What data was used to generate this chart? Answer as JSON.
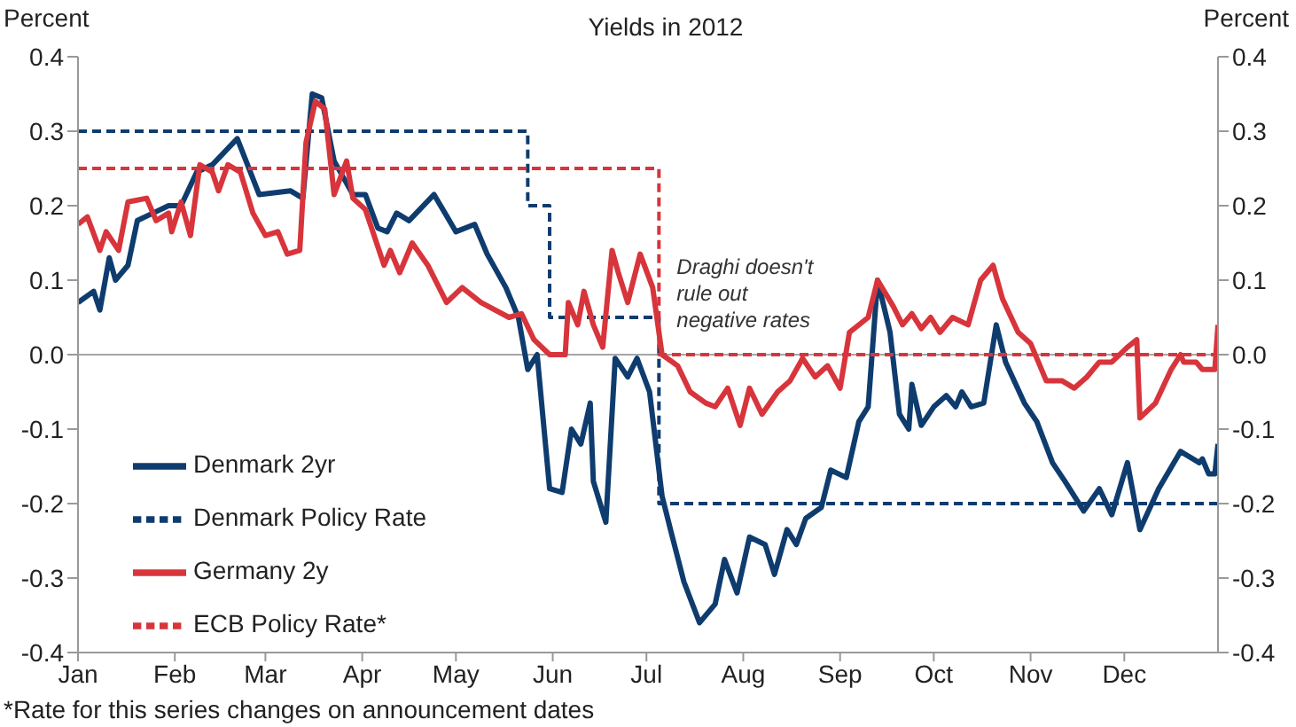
{
  "chart_data": {
    "type": "line",
    "title": "Yields in 2012",
    "ylabel": "Percent",
    "y2label": "Percent",
    "xlim": [
      "2012-01-01",
      "2012-12-31"
    ],
    "xticks": [
      {
        "value": "2012-01-01",
        "label": "Jan"
      },
      {
        "value": "2012-02-01",
        "label": "Feb"
      },
      {
        "value": "2012-03-01",
        "label": "Mar"
      },
      {
        "value": "2012-04-01",
        "label": "Apr"
      },
      {
        "value": "2012-05-01",
        "label": "May"
      },
      {
        "value": "2012-06-01",
        "label": "Jun"
      },
      {
        "value": "2012-07-01",
        "label": "Jul"
      },
      {
        "value": "2012-08-01",
        "label": "Aug"
      },
      {
        "value": "2012-09-01",
        "label": "Sep"
      },
      {
        "value": "2012-10-01",
        "label": "Oct"
      },
      {
        "value": "2012-11-01",
        "label": "Nov"
      },
      {
        "value": "2012-12-01",
        "label": "Dec"
      }
    ],
    "ylim": [
      -0.4,
      0.4
    ],
    "yticks": [
      -0.4,
      -0.3,
      -0.2,
      -0.1,
      {
        "value": 0,
        "label": "0.0"
      },
      0.1,
      0.2,
      0.3,
      0.4
    ],
    "y2lim": [
      -0.4,
      0.4
    ],
    "y2ticks": [
      -0.4,
      -0.3,
      -0.2,
      -0.1,
      {
        "value": 0,
        "label": "0.0"
      },
      0.1,
      0.2,
      0.3,
      0.4
    ],
    "marker": "none",
    "legend": "bottom left",
    "ref_lines": [
      {
        "axis": "y",
        "value": 0,
        "color": "#a6a6a6"
      }
    ],
    "annotations": [
      {
        "text": "Draghi doesn't rule out negative rates",
        "x": "2012-07-05",
        "y": 0.08
      },
      "*Rate for this series changes on announcement dates"
    ],
    "series": [
      {
        "name": "Denmark 2yr",
        "color": "#0f3c6e",
        "line_style": "solid",
        "x": [
          "2012-01-01",
          "2012-01-06",
          "2012-01-08",
          "2012-01-11",
          "2012-01-13",
          "2012-01-17",
          "2012-01-20",
          "2012-01-25",
          "2012-01-30",
          "2012-02-03",
          "2012-02-08",
          "2012-02-13",
          "2012-02-21",
          "2012-02-28",
          "2012-03-09",
          "2012-03-13",
          "2012-03-16",
          "2012-03-19",
          "2012-03-23",
          "2012-03-29",
          "2012-04-02",
          "2012-04-06",
          "2012-04-09",
          "2012-04-12",
          "2012-04-16",
          "2012-04-24",
          "2012-05-01",
          "2012-05-07",
          "2012-05-11",
          "2012-05-17",
          "2012-05-21",
          "2012-05-24",
          "2012-05-27",
          "2012-05-31",
          "2012-06-04",
          "2012-06-07",
          "2012-06-10",
          "2012-06-13",
          "2012-06-14",
          "2012-06-18",
          "2012-06-21",
          "2012-06-25",
          "2012-06-28",
          "2012-07-02",
          "2012-07-06",
          "2012-07-09",
          "2012-07-13",
          "2012-07-18",
          "2012-07-23",
          "2012-07-26",
          "2012-07-30",
          "2012-08-03",
          "2012-08-08",
          "2012-08-11",
          "2012-08-15",
          "2012-08-18",
          "2012-08-21",
          "2012-08-26",
          "2012-08-29",
          "2012-09-03",
          "2012-09-07",
          "2012-09-10",
          "2012-09-13",
          "2012-09-17",
          "2012-09-20",
          "2012-09-23",
          "2012-09-24",
          "2012-09-27",
          "2012-10-01",
          "2012-10-05",
          "2012-10-08",
          "2012-10-10",
          "2012-10-13",
          "2012-10-17",
          "2012-10-21",
          "2012-10-24",
          "2012-10-30",
          "2012-11-03",
          "2012-11-08",
          "2012-11-12",
          "2012-11-18",
          "2012-11-23",
          "2012-11-27",
          "2012-12-02",
          "2012-12-06",
          "2012-12-12",
          "2012-12-19",
          "2012-12-25",
          "2012-12-26",
          "2012-12-28",
          "2012-12-30",
          "2012-12-31"
        ],
        "values": [
          0.07,
          0.085,
          0.06,
          0.13,
          0.1,
          0.12,
          0.18,
          0.19,
          0.2,
          0.2,
          0.245,
          0.255,
          0.29,
          0.215,
          0.22,
          0.21,
          0.35,
          0.345,
          0.26,
          0.215,
          0.215,
          0.17,
          0.165,
          0.19,
          0.18,
          0.215,
          0.165,
          0.175,
          0.135,
          0.09,
          0.05,
          -0.02,
          0.0,
          -0.18,
          -0.185,
          -0.1,
          -0.12,
          -0.065,
          -0.17,
          -0.225,
          -0.005,
          -0.03,
          -0.005,
          -0.05,
          -0.19,
          -0.24,
          -0.305,
          -0.36,
          -0.335,
          -0.275,
          -0.32,
          -0.245,
          -0.255,
          -0.295,
          -0.235,
          -0.255,
          -0.22,
          -0.205,
          -0.155,
          -0.165,
          -0.09,
          -0.07,
          0.1,
          0.03,
          -0.08,
          -0.1,
          -0.04,
          -0.095,
          -0.07,
          -0.055,
          -0.07,
          -0.05,
          -0.07,
          -0.065,
          0.04,
          -0.01,
          -0.065,
          -0.09,
          -0.145,
          -0.17,
          -0.21,
          -0.18,
          -0.215,
          -0.145,
          -0.235,
          -0.18,
          -0.13,
          -0.145,
          -0.14,
          -0.16,
          -0.16,
          -0.12
        ]
      },
      {
        "name": "Denmark Policy Rate",
        "type": "step",
        "color": "#0f3c6e",
        "line_style": "dashed",
        "x": [
          "2012-01-01",
          "2012-05-24",
          "2012-05-31",
          "2012-07-05",
          "2012-12-31"
        ],
        "values": [
          0.3,
          0.2,
          0.05,
          -0.2,
          -0.2
        ]
      },
      {
        "name": "Germany 2y",
        "color": "#d7353b",
        "line_style": "solid",
        "x": [
          "2012-01-01",
          "2012-01-04",
          "2012-01-08",
          "2012-01-10",
          "2012-01-14",
          "2012-01-17",
          "2012-01-23",
          "2012-01-26",
          "2012-01-30",
          "2012-01-31",
          "2012-02-03",
          "2012-02-06",
          "2012-02-09",
          "2012-02-13",
          "2012-02-15",
          "2012-02-18",
          "2012-02-22",
          "2012-02-26",
          "2012-03-01",
          "2012-03-05",
          "2012-03-08",
          "2012-03-12",
          "2012-03-14",
          "2012-03-17",
          "2012-03-20",
          "2012-03-23",
          "2012-03-27",
          "2012-03-29",
          "2012-04-02",
          "2012-04-08",
          "2012-04-10",
          "2012-04-13",
          "2012-04-17",
          "2012-04-22",
          "2012-04-28",
          "2012-05-03",
          "2012-05-09",
          "2012-05-18",
          "2012-05-22",
          "2012-05-26",
          "2012-05-31",
          "2012-06-05",
          "2012-06-06",
          "2012-06-09",
          "2012-06-11",
          "2012-06-14",
          "2012-06-17",
          "2012-06-20",
          "2012-06-22",
          "2012-06-25",
          "2012-06-29",
          "2012-07-03",
          "2012-07-06",
          "2012-07-11",
          "2012-07-15",
          "2012-07-20",
          "2012-07-23",
          "2012-07-27",
          "2012-07-31",
          "2012-08-03",
          "2012-08-07",
          "2012-08-12",
          "2012-08-16",
          "2012-08-20",
          "2012-08-24",
          "2012-08-28",
          "2012-09-01",
          "2012-09-04",
          "2012-09-10",
          "2012-09-13",
          "2012-09-18",
          "2012-09-21",
          "2012-09-24",
          "2012-09-27",
          "2012-09-30",
          "2012-10-03",
          "2012-10-07",
          "2012-10-12",
          "2012-10-16",
          "2012-10-20",
          "2012-10-23",
          "2012-10-28",
          "2012-11-01",
          "2012-11-06",
          "2012-11-11",
          "2012-11-15",
          "2012-11-19",
          "2012-11-23",
          "2012-11-27",
          "2012-12-02",
          "2012-12-05",
          "2012-12-06",
          "2012-12-11",
          "2012-12-16",
          "2012-12-19",
          "2012-12-20",
          "2012-12-24",
          "2012-12-26",
          "2012-12-30",
          "2012-12-31"
        ],
        "values": [
          0.175,
          0.185,
          0.14,
          0.165,
          0.14,
          0.205,
          0.21,
          0.18,
          0.19,
          0.165,
          0.205,
          0.16,
          0.255,
          0.245,
          0.22,
          0.255,
          0.245,
          0.19,
          0.16,
          0.165,
          0.135,
          0.14,
          0.285,
          0.34,
          0.33,
          0.215,
          0.26,
          0.21,
          0.195,
          0.12,
          0.14,
          0.11,
          0.15,
          0.12,
          0.07,
          0.09,
          0.07,
          0.05,
          0.055,
          0.02,
          0.0,
          0.0,
          0.07,
          0.04,
          0.085,
          0.04,
          0.01,
          0.14,
          0.11,
          0.07,
          0.135,
          0.09,
          0.0,
          -0.015,
          -0.05,
          -0.065,
          -0.07,
          -0.045,
          -0.095,
          -0.045,
          -0.08,
          -0.05,
          -0.035,
          -0.005,
          -0.03,
          -0.015,
          -0.045,
          0.03,
          0.05,
          0.1,
          0.065,
          0.04,
          0.055,
          0.035,
          0.05,
          0.03,
          0.05,
          0.04,
          0.1,
          0.12,
          0.075,
          0.03,
          0.015,
          -0.035,
          -0.035,
          -0.045,
          -0.03,
          -0.01,
          -0.01,
          0.01,
          0.02,
          -0.085,
          -0.065,
          -0.02,
          0.0,
          -0.01,
          -0.01,
          -0.02,
          -0.02,
          0.04
        ]
      },
      {
        "name": "ECB Policy Rate*",
        "type": "step",
        "color": "#d7353b",
        "line_style": "dashed",
        "x": [
          "2012-01-01",
          "2012-07-05",
          "2012-12-31"
        ],
        "values": [
          0.25,
          0.0,
          0.0
        ]
      }
    ]
  }
}
